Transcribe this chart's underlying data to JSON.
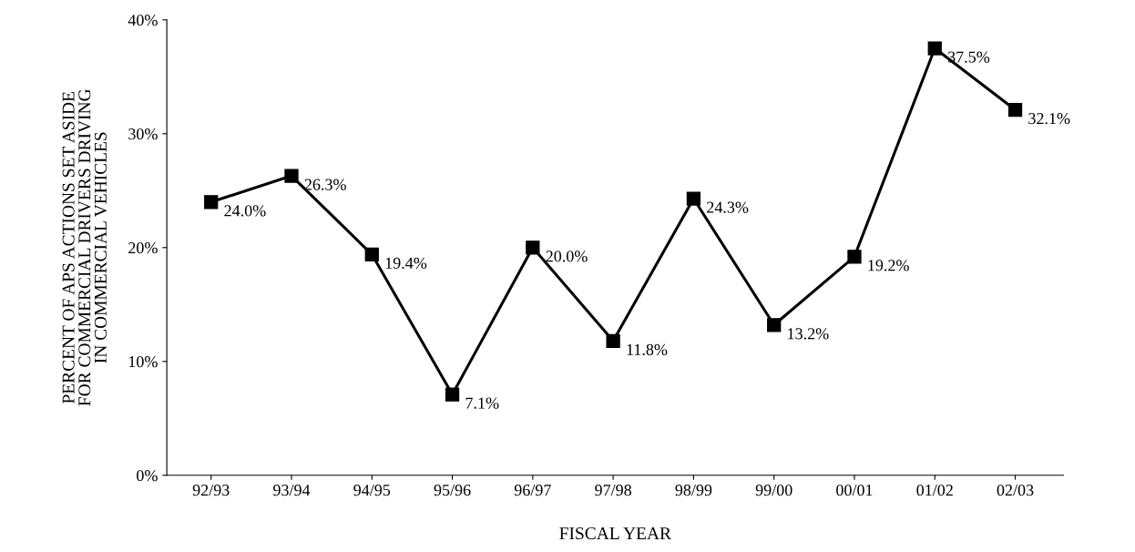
{
  "chart_data": {
    "type": "line",
    "xlabel": "FISCAL YEAR",
    "ylabel": "PERCENT OF APS ACTIONS SET ASIDE\nFOR COMMERCIAL DRIVERS DRIVING\nIN COMMERCIAL VEHICLES",
    "categories": [
      "92/93",
      "93/94",
      "94/95",
      "95/96",
      "96/97",
      "97/98",
      "98/99",
      "99/00",
      "00/01",
      "01/02",
      "02/03"
    ],
    "series": [
      {
        "color": "#000000",
        "values": [
          24.0,
          26.3,
          19.4,
          7.1,
          20.0,
          11.8,
          24.3,
          13.2,
          19.2,
          37.5,
          32.1
        ],
        "value_labels": [
          "24.0%",
          "26.3%",
          "19.4%",
          "7.1%",
          "20.0%",
          "11.8%",
          "24.3%",
          "13.2%",
          "19.2%",
          "37.5%",
          "32.1%"
        ]
      }
    ],
    "ylim": [
      0,
      40
    ],
    "yticks": [
      {
        "value": 0,
        "label": "0%"
      },
      {
        "value": 10,
        "label": "10%"
      },
      {
        "value": 20,
        "label": "20%"
      },
      {
        "value": 30,
        "label": "30%"
      },
      {
        "value": 40,
        "label": "40%"
      }
    ],
    "marker": "square",
    "line_style": "solid",
    "grid": false,
    "legend": false
  }
}
